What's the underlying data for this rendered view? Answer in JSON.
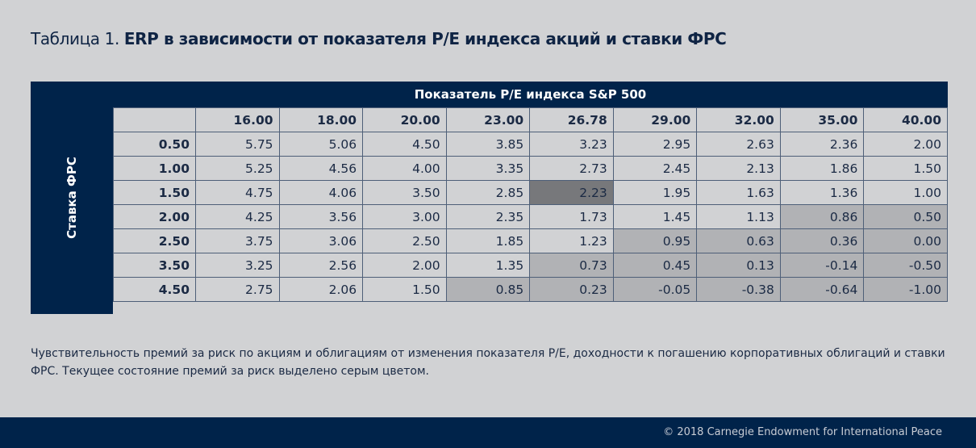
{
  "title": {
    "prefix": "Таблица 1. ",
    "main": "ERP в зависимости от показателя P/E индекса акций и ставки ФРС"
  },
  "table": {
    "column_group_label": "Показатель P/E индекса S&P 500",
    "row_group_label": "Ставка ФРС",
    "columns": [
      "16.00",
      "18.00",
      "20.00",
      "23.00",
      "26.78",
      "29.00",
      "32.00",
      "35.00",
      "40.00"
    ],
    "rows": [
      {
        "rate": "0.50",
        "values": [
          "5.75",
          "5.06",
          "4.50",
          "3.85",
          "3.23",
          "2.95",
          "2.63",
          "2.36",
          "2.00"
        ]
      },
      {
        "rate": "1.00",
        "values": [
          "5.25",
          "4.56",
          "4.00",
          "3.35",
          "2.73",
          "2.45",
          "2.13",
          "1.86",
          "1.50"
        ]
      },
      {
        "rate": "1.50",
        "values": [
          "4.75",
          "4.06",
          "3.50",
          "2.85",
          "2.23",
          "1.95",
          "1.63",
          "1.36",
          "1.00"
        ]
      },
      {
        "rate": "2.00",
        "values": [
          "4.25",
          "3.56",
          "3.00",
          "2.35",
          "1.73",
          "1.45",
          "1.13",
          "0.86",
          "0.50"
        ]
      },
      {
        "rate": "2.50",
        "values": [
          "3.75",
          "3.06",
          "2.50",
          "1.85",
          "1.23",
          "0.95",
          "0.63",
          "0.36",
          "0.00"
        ]
      },
      {
        "rate": "3.50",
        "values": [
          "3.25",
          "2.56",
          "2.00",
          "1.35",
          "0.73",
          "0.45",
          "0.13",
          "-0.14",
          "-0.50"
        ]
      },
      {
        "rate": "4.50",
        "values": [
          "2.75",
          "2.06",
          "1.50",
          "0.85",
          "0.23",
          "-0.05",
          "-0.38",
          "-0.64",
          "-1.00"
        ]
      }
    ],
    "current_cell": {
      "row": 2,
      "col": 4
    },
    "gray_below": 1.0
  },
  "note": "Чувствительность премий за риск по акциям и облигациям от изменения показателя P/E, доходности к погашению корпоративных облигаций и ставки ФРС. Текущее состояние премий за риск выделено серым цветом.",
  "footer": "© 2018 Carnegie Endowment for International Peace",
  "colors": {
    "navy": "#00234a",
    "light": "#d1d2d4",
    "gray": "#b1b2b5",
    "dark": "#77787b"
  }
}
